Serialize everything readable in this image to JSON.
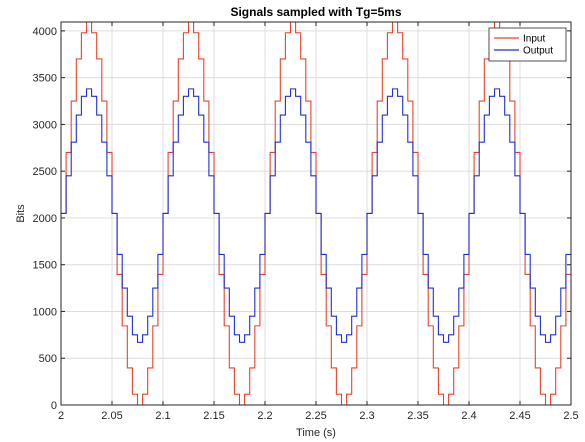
{
  "chart_data": {
    "type": "line",
    "title": "Signals sampled with Tg=5ms",
    "xlabel": "Time (s)",
    "ylabel": "Bits",
    "xlim": [
      2,
      2.5
    ],
    "ylim": [
      0,
      4095
    ],
    "xticks": [
      "2",
      "2.05",
      "2.1",
      "2.15",
      "2.2",
      "2.25",
      "2.3",
      "2.35",
      "2.4",
      "2.45",
      "2.5"
    ],
    "yticks": [
      "0",
      "500",
      "1000",
      "1500",
      "2000",
      "2500",
      "3000",
      "3500",
      "4000"
    ],
    "grid": true,
    "legend_position": "top-right",
    "step": true,
    "sample_period_s": 0.005,
    "colors": {
      "input": "#e8432a",
      "output": "#1f2fd8",
      "grid": "#dcdcdc",
      "axis": "#262626"
    },
    "x": [
      2.0,
      2.005,
      2.01,
      2.015,
      2.02,
      2.025,
      2.03,
      2.035,
      2.04,
      2.045,
      2.05,
      2.055,
      2.06,
      2.065,
      2.07,
      2.075,
      2.08,
      2.085,
      2.09,
      2.095,
      2.1
    ],
    "series": [
      {
        "name": "Input",
        "color": "#e8432a",
        "period_s": 0.1,
        "values": [
          2048,
          2700,
          3250,
          3700,
          3980,
          4095,
          3980,
          3700,
          3250,
          2700,
          2048,
          1396,
          846,
          396,
          116,
          0,
          116,
          396,
          846,
          1396,
          2048
        ]
      },
      {
        "name": "Output",
        "color": "#1f2fd8",
        "period_s": 0.1,
        "values": [
          2048,
          2450,
          2810,
          3100,
          3300,
          3380,
          3300,
          3100,
          2810,
          2450,
          2048,
          1610,
          1250,
          950,
          750,
          670,
          750,
          950,
          1250,
          1610,
          2048
        ]
      }
    ]
  }
}
